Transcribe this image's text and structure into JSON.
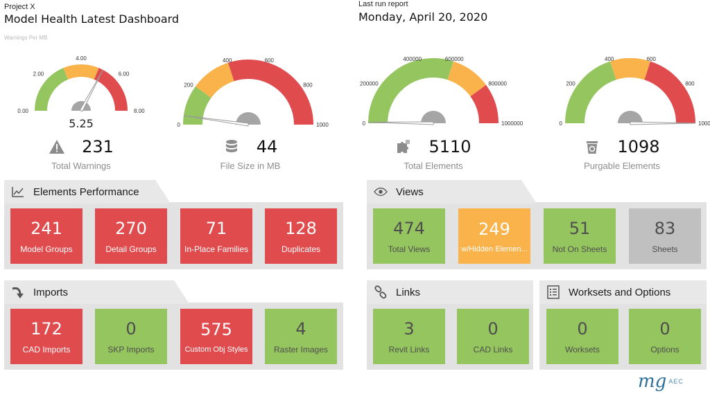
{
  "header": {
    "project": "Project X",
    "title": "Model Health Latest Dashboard",
    "subtitle": "Warnings Per MB",
    "run_label": "Last run report",
    "run_date": "Monday, April 20, 2020"
  },
  "colors": {
    "red": "#e04b4e",
    "green": "#95c55f",
    "orange": "#fab24a",
    "gray": "#c0c0c0",
    "panel": "#e2e2e2"
  },
  "gauges": [
    {
      "ticks": [
        "0.00",
        "2.00",
        "4.00",
        "6.00",
        "8.00"
      ],
      "value_label": "5.25",
      "value": 5.25,
      "min": 0,
      "max": 8,
      "green_to": 0.375,
      "orange_to": 0.625
    },
    {
      "ticks": [
        "0",
        "200",
        "400",
        "600",
        "800",
        "1000"
      ],
      "value_label": "",
      "value": 44,
      "min": 0,
      "max": 1000,
      "green_to": 0.2,
      "orange_to": 0.4
    },
    {
      "ticks": [
        "0",
        "200000",
        "400000",
        "600000",
        "800000",
        "1000000"
      ],
      "value_label": "",
      "value": 5110,
      "min": 0,
      "max": 1000000,
      "green_to": 0.6,
      "orange_to": 0.8
    },
    {
      "ticks": [
        "0",
        "200",
        "400",
        "600",
        "800",
        "1000"
      ],
      "value_label": "",
      "value": 1098,
      "min": 0,
      "max": 1000,
      "green_to": 0.4,
      "orange_to": 0.6
    }
  ],
  "kpis": [
    {
      "value": "231",
      "label": "Total Warnings",
      "icon": "warning-icon"
    },
    {
      "value": "44",
      "label": "File Size in MB",
      "icon": "database-icon"
    },
    {
      "value": "5110",
      "label": "Total Elements",
      "icon": "puzzle-icon"
    },
    {
      "value": "1098",
      "label": "Purgable Elements",
      "icon": "recycle-bin-icon"
    }
  ],
  "panels": {
    "elements_performance": {
      "title": "Elements Performance",
      "icon": "line-chart-icon",
      "tiles": [
        {
          "value": "241",
          "label": "Model Groups",
          "color": "red"
        },
        {
          "value": "270",
          "label": "Detail Groups",
          "color": "red"
        },
        {
          "value": "71",
          "label": "In-Place Families",
          "color": "red"
        },
        {
          "value": "128",
          "label": "Duplicates",
          "color": "red"
        }
      ]
    },
    "views": {
      "title": "Views",
      "icon": "eye-icon",
      "tiles": [
        {
          "value": "474",
          "label": "Total Views",
          "color": "green"
        },
        {
          "value": "249",
          "label": "w/Hidden Elemen...",
          "color": "orange"
        },
        {
          "value": "51",
          "label": "Not On Sheets",
          "color": "green"
        },
        {
          "value": "83",
          "label": "Sheets",
          "color": "gray"
        }
      ]
    },
    "imports": {
      "title": "Imports",
      "icon": "curved-arrow-icon",
      "tiles": [
        {
          "value": "172",
          "label": "CAD Imports",
          "color": "red"
        },
        {
          "value": "0",
          "label": "SKP Imports",
          "color": "green"
        },
        {
          "value": "575",
          "label": "Custom Obj Styles",
          "color": "red"
        },
        {
          "value": "4",
          "label": "Raster Images",
          "color": "green"
        }
      ]
    },
    "links": {
      "title": "Links",
      "icon": "link-icon",
      "tiles": [
        {
          "value": "3",
          "label": "Revit Links",
          "color": "green"
        },
        {
          "value": "0",
          "label": "CAD Links",
          "color": "green"
        }
      ]
    },
    "worksets": {
      "title": "Worksets and Options",
      "icon": "checklist-icon",
      "tiles": [
        {
          "value": "0",
          "label": "Worksets",
          "color": "green"
        },
        {
          "value": "0",
          "label": "Options",
          "color": "green"
        }
      ]
    }
  },
  "logo": {
    "mark": "mg",
    "text": "AEC",
    "icon": "mg-aec-logo"
  }
}
